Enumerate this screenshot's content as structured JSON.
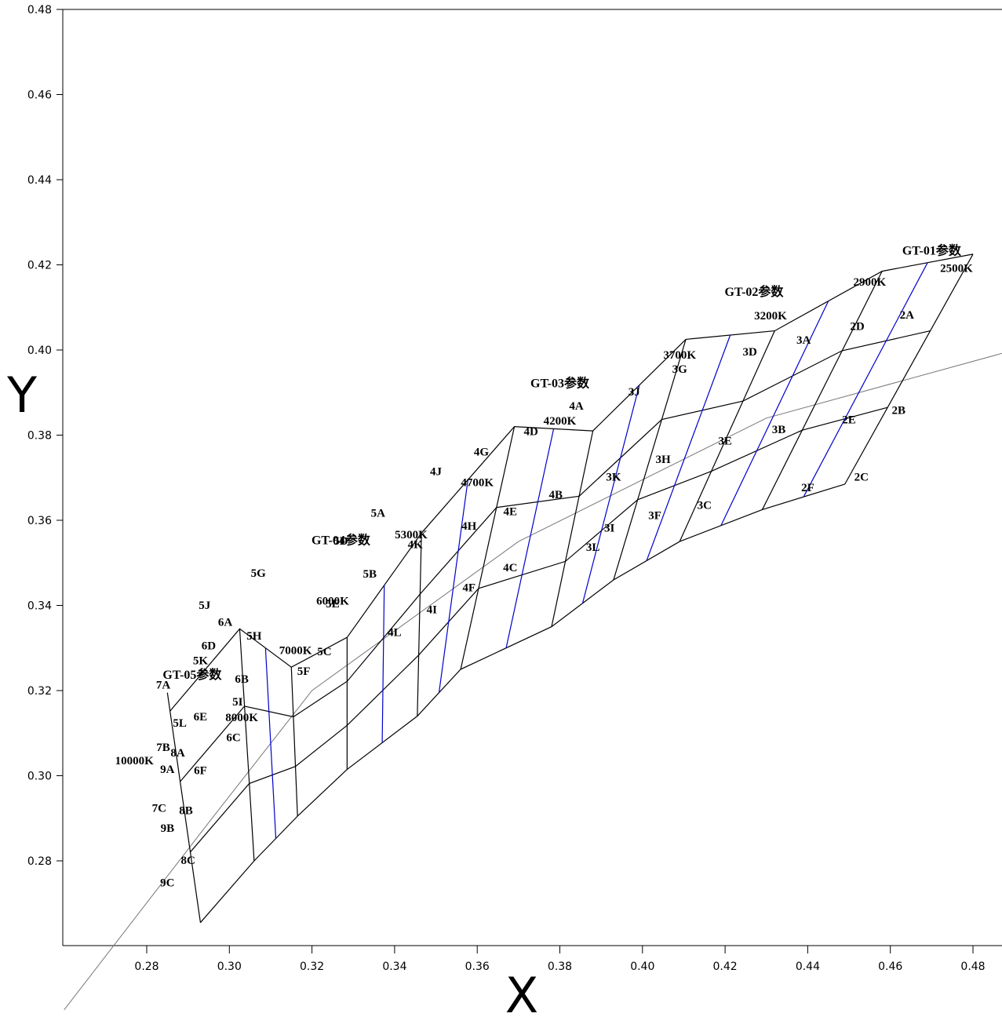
{
  "chart_data": {
    "type": "diagram",
    "xlabel": "X",
    "ylabel": "Y",
    "xlim": [
      0.265,
      0.49
    ],
    "ylim": [
      0.262,
      0.482
    ],
    "x_ticks": [
      "0.28",
      "0.30",
      "0.32",
      "0.34",
      "0.36",
      "0.38",
      "0.40",
      "0.42",
      "0.44",
      "0.46",
      "0.48"
    ],
    "y_ticks": [
      "0.48",
      "0.46",
      "0.44",
      "0.42",
      "0.40",
      "0.38",
      "0.36",
      "0.34",
      "0.32",
      "0.30",
      "0.28"
    ],
    "colors": {
      "grid_line": "#000000",
      "split_line": "#0000cc",
      "locus": "#777777"
    },
    "locus_points": [
      [
        0.26,
        0.245
      ],
      [
        0.295,
        0.289
      ],
      [
        0.32,
        0.32
      ],
      [
        0.37,
        0.355
      ],
      [
        0.43,
        0.384
      ],
      [
        0.49,
        0.4
      ]
    ],
    "cct_lines": [
      {
        "label": "10000K",
        "pts": [
          [
            0.285,
            0.3195
          ],
          [
            0.293,
            0.2655
          ]
        ]
      },
      {
        "label": "8000K",
        "pts": [
          [
            0.3025,
            0.3345
          ],
          [
            0.306,
            0.28
          ]
        ]
      },
      {
        "label": "7000K",
        "pts": [
          [
            0.315,
            0.3255
          ],
          [
            0.3165,
            0.2905
          ]
        ]
      },
      {
        "label": "6000K",
        "pts": [
          [
            0.3285,
            0.3325
          ],
          [
            0.3285,
            0.3015
          ]
        ]
      },
      {
        "label": "5300K",
        "pts": [
          [
            0.3465,
            0.357
          ],
          [
            0.3455,
            0.314
          ]
        ]
      },
      {
        "label": "4700K",
        "pts": [
          [
            0.369,
            0.382
          ],
          [
            0.356,
            0.325
          ]
        ]
      },
      {
        "label": "4200K",
        "pts": [
          [
            0.388,
            0.381
          ],
          [
            0.378,
            0.335
          ]
        ]
      },
      {
        "label": "3700K",
        "pts": [
          [
            0.4105,
            0.4025
          ],
          [
            0.393,
            0.346
          ]
        ]
      },
      {
        "label": "3200K",
        "pts": [
          [
            0.432,
            0.4045
          ],
          [
            0.409,
            0.355
          ]
        ]
      },
      {
        "label": "2900K",
        "pts": [
          [
            0.458,
            0.4185
          ],
          [
            0.429,
            0.3625
          ]
        ]
      },
      {
        "label": "2500K",
        "pts": [
          [
            0.48,
            0.4225
          ],
          [
            0.449,
            0.3685
          ]
        ]
      }
    ],
    "cct_label_positions": [
      [
        0.277,
        0.3027
      ],
      [
        0.303,
        0.3128
      ],
      [
        0.316,
        0.3286
      ],
      [
        0.325,
        0.3402
      ],
      [
        0.344,
        0.3558
      ],
      [
        0.36,
        0.368
      ],
      [
        0.38,
        0.3825
      ],
      [
        0.409,
        0.398
      ],
      [
        0.431,
        0.4072
      ],
      [
        0.455,
        0.4151
      ],
      [
        0.476,
        0.4183
      ]
    ],
    "group_labels": [
      {
        "label": "GT-01参数",
        "pos": [
          0.47,
          0.4224
        ]
      },
      {
        "label": "GT-02参数",
        "pos": [
          0.427,
          0.4127
        ]
      },
      {
        "label": "GT-03参数",
        "pos": [
          0.38,
          0.3912
        ]
      },
      {
        "label": "GT-04参数",
        "pos": [
          0.327,
          0.3544
        ]
      },
      {
        "label": "GT-05参数",
        "pos": [
          0.291,
          0.3228
        ]
      }
    ],
    "bins": [
      {
        "label": "2A",
        "pos": [
          0.464,
          0.4074
        ]
      },
      {
        "label": "2B",
        "pos": [
          0.462,
          0.385
        ]
      },
      {
        "label": "2C",
        "pos": [
          0.453,
          0.3693
        ]
      },
      {
        "label": "2D",
        "pos": [
          0.452,
          0.4047
        ]
      },
      {
        "label": "2E",
        "pos": [
          0.45,
          0.3828
        ]
      },
      {
        "label": "2F",
        "pos": [
          0.44,
          0.3668
        ]
      },
      {
        "label": "3A",
        "pos": [
          0.439,
          0.4015
        ]
      },
      {
        "label": "3B",
        "pos": [
          0.433,
          0.3805
        ]
      },
      {
        "label": "3C",
        "pos": [
          0.415,
          0.3627
        ]
      },
      {
        "label": "3D",
        "pos": [
          0.426,
          0.3987
        ]
      },
      {
        "label": "3E",
        "pos": [
          0.42,
          0.3778
        ]
      },
      {
        "label": "3F",
        "pos": [
          0.403,
          0.3603
        ]
      },
      {
        "label": "3G",
        "pos": [
          0.409,
          0.3947
        ]
      },
      {
        "label": "3H",
        "pos": [
          0.405,
          0.3735
        ]
      },
      {
        "label": "3I",
        "pos": [
          0.392,
          0.3573
        ]
      },
      {
        "label": "3J",
        "pos": [
          0.398,
          0.3893
        ]
      },
      {
        "label": "3K",
        "pos": [
          0.393,
          0.3693
        ]
      },
      {
        "label": "3L",
        "pos": [
          0.388,
          0.3528
        ]
      },
      {
        "label": "4A",
        "pos": [
          0.384,
          0.386
        ]
      },
      {
        "label": "4B",
        "pos": [
          0.379,
          0.3652
        ]
      },
      {
        "label": "4C",
        "pos": [
          0.368,
          0.348
        ]
      },
      {
        "label": "4D",
        "pos": [
          0.373,
          0.38
        ]
      },
      {
        "label": "4E",
        "pos": [
          0.368,
          0.3612
        ]
      },
      {
        "label": "4F",
        "pos": [
          0.358,
          0.3433
        ]
      },
      {
        "label": "4G",
        "pos": [
          0.361,
          0.3752
        ]
      },
      {
        "label": "4H",
        "pos": [
          0.358,
          0.3578
        ]
      },
      {
        "label": "4I",
        "pos": [
          0.349,
          0.3382
        ]
      },
      {
        "label": "4J",
        "pos": [
          0.35,
          0.3706
        ]
      },
      {
        "label": "4K",
        "pos": [
          0.345,
          0.3535
        ]
      },
      {
        "label": "4L",
        "pos": [
          0.34,
          0.3328
        ]
      },
      {
        "label": "5A",
        "pos": [
          0.336,
          0.3608
        ]
      },
      {
        "label": "5B",
        "pos": [
          0.334,
          0.3465
        ]
      },
      {
        "label": "5C",
        "pos": [
          0.323,
          0.3283
        ]
      },
      {
        "label": "5D",
        "pos": [
          0.327,
          0.3543
        ]
      },
      {
        "label": "5E",
        "pos": [
          0.325,
          0.3395
        ]
      },
      {
        "label": "5F",
        "pos": [
          0.318,
          0.3237
        ]
      },
      {
        "label": "5G",
        "pos": [
          0.307,
          0.3467
        ]
      },
      {
        "label": "5H",
        "pos": [
          0.306,
          0.332
        ]
      },
      {
        "label": "5I",
        "pos": [
          0.302,
          0.3165
        ]
      },
      {
        "label": "5J",
        "pos": [
          0.294,
          0.3392
        ]
      },
      {
        "label": "5K",
        "pos": [
          0.293,
          0.3262
        ]
      },
      {
        "label": "5L",
        "pos": [
          0.288,
          0.3115
        ]
      },
      {
        "label": "6A",
        "pos": [
          0.299,
          0.3352
        ]
      },
      {
        "label": "6B",
        "pos": [
          0.303,
          0.3218
        ]
      },
      {
        "label": "6C",
        "pos": [
          0.301,
          0.3081
        ]
      },
      {
        "label": "6D",
        "pos": [
          0.295,
          0.3297
        ]
      },
      {
        "label": "6E",
        "pos": [
          0.293,
          0.313
        ]
      },
      {
        "label": "6F",
        "pos": [
          0.293,
          0.3004
        ]
      },
      {
        "label": "7A",
        "pos": [
          0.284,
          0.3205
        ]
      },
      {
        "label": "7B",
        "pos": [
          0.284,
          0.3058
        ]
      },
      {
        "label": "7C",
        "pos": [
          0.283,
          0.2915
        ]
      },
      {
        "label": "8A",
        "pos": [
          0.2875,
          0.3045
        ]
      },
      {
        "label": "8B",
        "pos": [
          0.2895,
          0.291
        ]
      },
      {
        "label": "8C",
        "pos": [
          0.29,
          0.2793
        ]
      },
      {
        "label": "9A",
        "pos": [
          0.285,
          0.3006
        ]
      },
      {
        "label": "9B",
        "pos": [
          0.285,
          0.2868
        ]
      },
      {
        "label": "9C",
        "pos": [
          0.285,
          0.274
        ]
      }
    ]
  }
}
